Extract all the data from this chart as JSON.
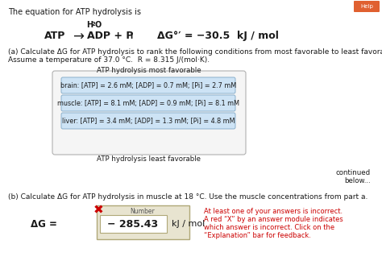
{
  "title_text": "The equation for ATP hydrolysis is",
  "box1_text": "brain: [ATP] = 2.6 mM; [ADP] = 0.7 mM; [Pi] = 2.7 mM",
  "box2_text": "muscle: [ATP] = 8.1 mM; [ADP] = 0.9 mM; [Pi] = 8.1 mM",
  "box3_text": "liver: [ATP] = 3.4 mM; [ADP] = 1.3 mM; [Pi] = 4.8 mM",
  "most_favorable": "ATP hydrolysis most favorable",
  "least_favorable": "ATP hydrolysis least favorable",
  "continued_text": "continued\nbelow...",
  "part_a_line1": "(a) Calculate ΔG for ATP hydrolysis to rank the following conditions from most favorable to least favorable.",
  "part_a_line2": "Assume a temperature of 37.0 °C.  R = 8.315 J/(mol·K).",
  "part_b_text": "(b) Calculate ΔG for ATP hydrolysis in muscle at 18 °C. Use the muscle concentrations from part a.",
  "delta_g_label": "ΔG =",
  "answer_value": "− 285.43",
  "answer_unit": "kJ / mol",
  "number_label": "Number",
  "error_line1": "At least one of your answers is incorrect.",
  "error_line2": "A red “X” by an answer module indicates",
  "error_line3": "which answer is incorrect. Click on the",
  "error_line4": "“Explanation” bar for feedback.",
  "box_bg_color": "#cde3f5",
  "box_border_color": "#8ab0cc",
  "outer_box_bg": "#f5f5f5",
  "outer_box_border": "#b0b0b0",
  "answer_box_bg": "#e8e4d0",
  "answer_box_border": "#b0a878",
  "error_color": "#cc0000",
  "x_mark_color": "#cc0000",
  "bg_color": "#ffffff",
  "text_color": "#1a1a1a"
}
